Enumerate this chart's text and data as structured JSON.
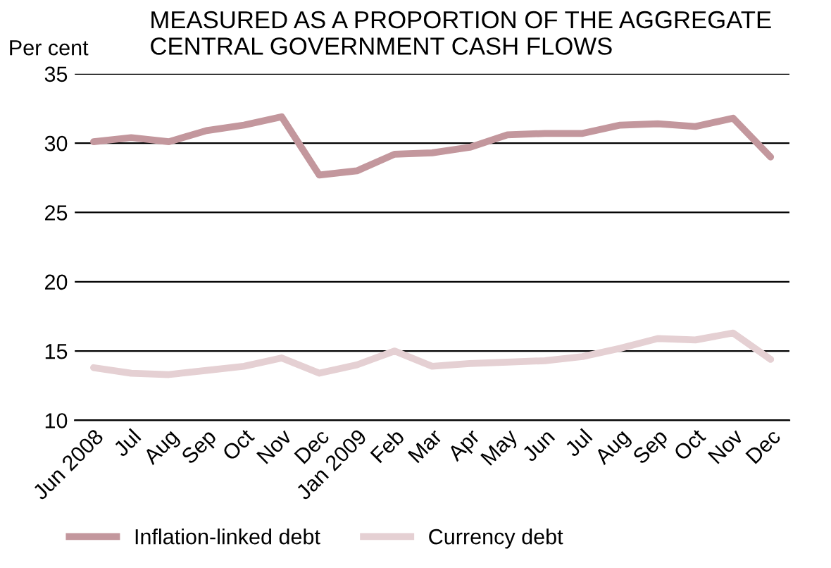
{
  "chart_data": {
    "type": "line",
    "title": "MEASURED AS A PROPORTION OF THE AGGREGATE\nCENTRAL GOVERNMENT CASH FLOWS",
    "ylabel": "Per cent",
    "categories": [
      "Jun 2008",
      "Jul",
      "Aug",
      "Sep",
      "Oct",
      "Nov",
      "Dec",
      "Jan 2009",
      "Feb",
      "Mar",
      "Apr",
      "May",
      "Jun",
      "Jul",
      "Aug",
      "Sep",
      "Oct",
      "Nov",
      "Dec"
    ],
    "series": [
      {
        "name": "Inflation-linked debt",
        "color": "#c3979d",
        "values": [
          30.1,
          30.4,
          30.1,
          30.9,
          31.3,
          31.9,
          27.7,
          28.0,
          29.2,
          29.3,
          29.7,
          30.6,
          30.7,
          30.7,
          31.3,
          31.4,
          31.2,
          31.8,
          29.0
        ]
      },
      {
        "name": "Currency debt",
        "color": "#e5d0d3",
        "values": [
          13.8,
          13.4,
          13.3,
          13.6,
          13.9,
          14.5,
          13.4,
          14.0,
          15.0,
          13.9,
          14.1,
          14.2,
          14.3,
          14.6,
          15.2,
          15.9,
          15.8,
          16.3,
          14.4
        ]
      }
    ],
    "ylim": [
      10,
      35
    ],
    "yticks": [
      10,
      15,
      20,
      25,
      30,
      35
    ],
    "grid": "y",
    "legend": "bottom left",
    "marker": "none",
    "line_style": "solid"
  }
}
